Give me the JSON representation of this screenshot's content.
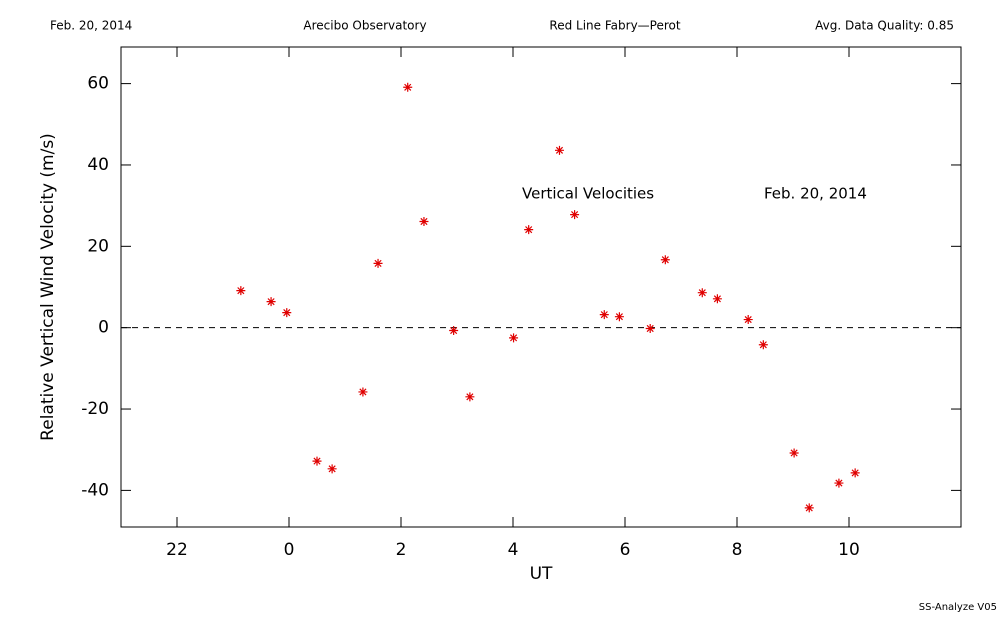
{
  "chart_data": {
    "type": "scatter",
    "header": [
      "Feb. 20, 2014",
      "Arecibo Observatory",
      "Red Line Fabry—Perot",
      "Avg. Data Quality: 0.85"
    ],
    "annotations": [
      "Vertical Velocities",
      "Feb. 20, 2014"
    ],
    "footer": "SS-Analyze V05",
    "xlabel": "UT",
    "ylabel": "Relative Vertical Wind Velocity (m/s)",
    "xlim": [
      -3,
      12
    ],
    "ylim": [
      -49,
      69
    ],
    "xticks": [
      {
        "value": -2,
        "label": "22"
      },
      0,
      2,
      4,
      6,
      8,
      10
    ],
    "yticks": [
      -40,
      -20,
      0,
      20,
      40,
      60
    ],
    "reference_line": 0,
    "color": "#e00000",
    "series": [
      {
        "x": [
          -0.86,
          -0.32,
          -0.04,
          0.5,
          0.77,
          1.32,
          1.59,
          2.12,
          2.41,
          2.94,
          3.23,
          4.01,
          4.28,
          4.83,
          5.1,
          5.63,
          5.9,
          6.45,
          6.72,
          7.38,
          7.65,
          8.2,
          8.47,
          9.02,
          9.29,
          9.82,
          10.11
        ],
        "values": [
          9.1,
          6.4,
          3.7,
          -32.8,
          -34.7,
          -15.8,
          15.8,
          59.1,
          26.1,
          -0.7,
          -17,
          -2.5,
          24.1,
          43.6,
          27.8,
          3.2,
          2.7,
          -0.2,
          16.7,
          8.6,
          7.1,
          2,
          -4.2,
          -30.8,
          -44.3,
          -38.2,
          -35.7
        ]
      }
    ]
  }
}
